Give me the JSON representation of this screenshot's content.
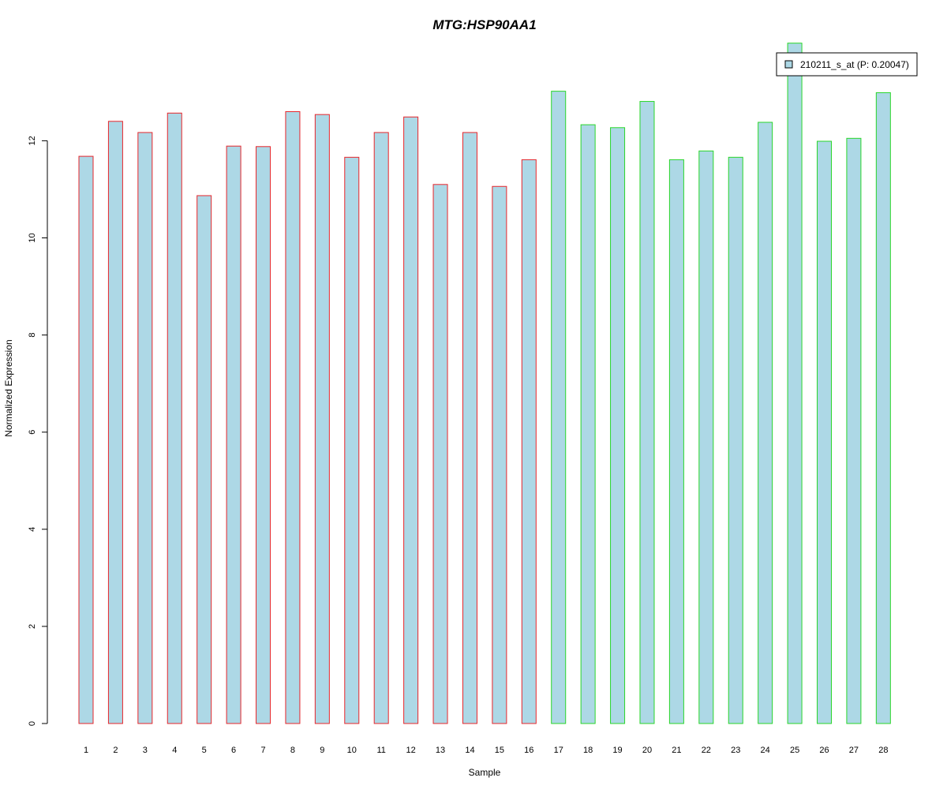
{
  "chart_data": {
    "type": "bar",
    "title": "MTG:HSP90AA1",
    "xlabel": "Sample",
    "ylabel": "Normalized Expression",
    "ylim": [
      0,
      14
    ],
    "yticks": [
      "0",
      "2",
      "4",
      "6",
      "8",
      "10",
      "12"
    ],
    "grid": false,
    "legend_placement": "top-right",
    "categories": [
      "1",
      "2",
      "3",
      "4",
      "5",
      "6",
      "7",
      "8",
      "9",
      "10",
      "11",
      "12",
      "13",
      "14",
      "15",
      "16",
      "17",
      "18",
      "19",
      "20",
      "21",
      "22",
      "23",
      "24",
      "25",
      "26",
      "27",
      "28"
    ],
    "series": [
      {
        "name": "210211_s_at (P: 0.20047)",
        "values": [
          11.68,
          12.4,
          12.17,
          12.57,
          10.87,
          11.89,
          11.88,
          12.6,
          12.54,
          11.66,
          12.17,
          12.49,
          11.1,
          12.17,
          11.06,
          11.61,
          13.02,
          12.33,
          12.27,
          12.81,
          11.61,
          11.79,
          11.66,
          12.38,
          14.01,
          11.99,
          12.05,
          12.99
        ]
      }
    ],
    "groups": [
      {
        "from": 1,
        "to": 16,
        "border_color": "#e8262b"
      },
      {
        "from": 17,
        "to": 28,
        "border_color": "#2ad62a"
      }
    ],
    "colors": {
      "bar_fill": "#add8e6",
      "title": "#0000cc",
      "axis": "#000000"
    }
  }
}
